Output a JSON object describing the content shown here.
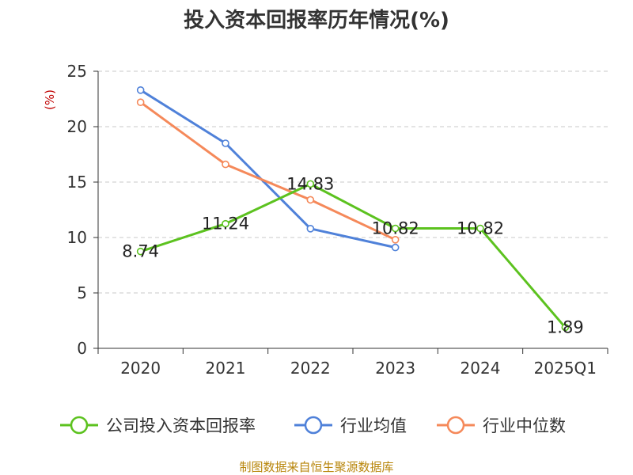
{
  "chart_data": {
    "type": "line",
    "title": "投入资本回报率历年情况(%)",
    "y_unit_label": "(%)",
    "categories": [
      "2020",
      "2021",
      "2022",
      "2023",
      "2024",
      "2025Q1"
    ],
    "ylim": [
      0,
      25
    ],
    "yticks": [
      0,
      5,
      10,
      15,
      20,
      25
    ],
    "grid": true,
    "legend_position": "bottom",
    "series": [
      {
        "name": "公司投入资本回报率",
        "color": "#5cc21f",
        "values": [
          8.74,
          11.24,
          14.83,
          10.82,
          10.82,
          1.89
        ],
        "labels": [
          "8.74",
          "11.24",
          "14.83",
          "10.82",
          "10.82",
          "1.89"
        ]
      },
      {
        "name": "行业均值",
        "color": "#4f81d9",
        "values": [
          23.3,
          18.5,
          10.8,
          9.1,
          null,
          null
        ]
      },
      {
        "name": "行业中位数",
        "color": "#f5895a",
        "values": [
          22.2,
          16.6,
          13.4,
          9.8,
          null,
          null
        ]
      }
    ]
  },
  "footer": {
    "source": "制图数据来自恒生聚源数据库"
  }
}
